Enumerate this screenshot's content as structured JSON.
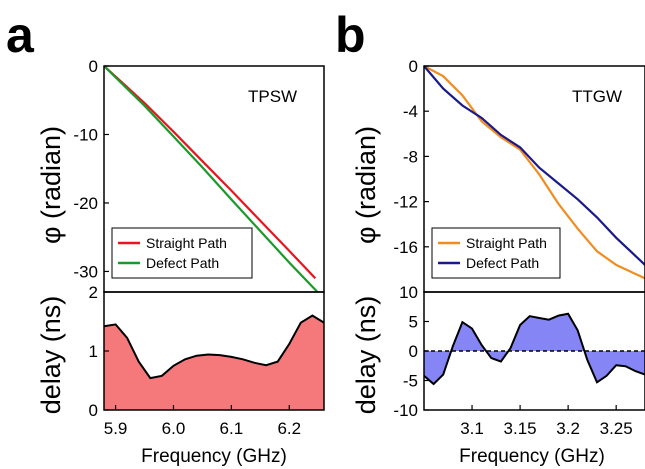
{
  "panels": [
    {
      "letter": "a"
    },
    {
      "letter": "b"
    }
  ],
  "chart_data": [
    {
      "type": "line",
      "panel": "a",
      "inset_label": "TPSW",
      "ylabel": "φ (radian)",
      "ylim": [
        -33,
        0
      ],
      "xlim": [
        5.88,
        6.26
      ],
      "yticks": [
        0,
        -10,
        -20,
        -30
      ],
      "ytick_labels": [
        "0",
        "-10",
        "-20",
        "-30"
      ],
      "legend_position": "bottom-left",
      "series": [
        {
          "name": "Straight Path",
          "color": "#e8141e",
          "x": [
            5.88,
            5.95,
            6.0,
            6.05,
            6.1,
            6.15,
            6.2,
            6.245
          ],
          "y": [
            0,
            -5.4,
            -9.6,
            -13.9,
            -18.2,
            -22.6,
            -27.0,
            -31.0
          ]
        },
        {
          "name": "Defect Path",
          "color": "#1a9a2a",
          "x": [
            5.88,
            5.95,
            6.0,
            6.05,
            6.1,
            6.15,
            6.2,
            6.26
          ],
          "y": [
            0,
            -5.8,
            -10.3,
            -14.8,
            -19.5,
            -24.1,
            -28.7,
            -34.0
          ]
        }
      ]
    },
    {
      "type": "area",
      "panel": "a",
      "ylabel": "delay (ns)",
      "xlabel": "Frequency (GHz)",
      "xlim": [
        5.88,
        6.26
      ],
      "ylim": [
        0,
        2
      ],
      "xticks": [
        5.9,
        6.0,
        6.1,
        6.2
      ],
      "xtick_labels": [
        "5.9",
        "6.0",
        "6.1",
        "6.2"
      ],
      "yticks": [
        0,
        1,
        2
      ],
      "ytick_labels": [
        "0",
        "1",
        "2"
      ],
      "fill_color": "#f5797a",
      "x": [
        5.88,
        5.9,
        5.92,
        5.94,
        5.96,
        5.98,
        6.0,
        6.02,
        6.04,
        6.06,
        6.08,
        6.1,
        6.12,
        6.14,
        6.16,
        6.18,
        6.2,
        6.22,
        6.24,
        6.26
      ],
      "values": [
        1.42,
        1.45,
        1.22,
        0.82,
        0.54,
        0.58,
        0.75,
        0.86,
        0.92,
        0.94,
        0.93,
        0.9,
        0.86,
        0.8,
        0.76,
        0.82,
        1.12,
        1.48,
        1.6,
        1.48
      ]
    },
    {
      "type": "line",
      "panel": "b",
      "inset_label": "TTGW",
      "ylabel": "φ (radian)",
      "ylim": [
        -20,
        0
      ],
      "xlim": [
        3.05,
        3.28
      ],
      "yticks": [
        0,
        -4,
        -8,
        -12,
        -16
      ],
      "ytick_labels": [
        "0",
        "-4",
        "-8",
        "-12",
        "-16"
      ],
      "legend_position": "bottom-left",
      "series": [
        {
          "name": "Straight Path",
          "color": "#f28c1e",
          "x": [
            3.05,
            3.07,
            3.09,
            3.11,
            3.13,
            3.15,
            3.17,
            3.19,
            3.21,
            3.23,
            3.25,
            3.28
          ],
          "y": [
            0,
            -0.9,
            -2.6,
            -4.9,
            -6.3,
            -7.4,
            -9.6,
            -12.2,
            -14.4,
            -16.4,
            -17.6,
            -18.8
          ]
        },
        {
          "name": "Defect Path",
          "color": "#1a1a8c",
          "x": [
            3.05,
            3.07,
            3.09,
            3.11,
            3.13,
            3.15,
            3.17,
            3.19,
            3.21,
            3.23,
            3.25,
            3.28
          ],
          "y": [
            0,
            -2.0,
            -3.5,
            -4.6,
            -6.1,
            -7.2,
            -9.0,
            -10.4,
            -11.8,
            -13.4,
            -15.2,
            -17.6
          ]
        }
      ]
    },
    {
      "type": "area",
      "panel": "b",
      "ylabel": "delay (ns)",
      "xlabel": "Frequency (GHz)",
      "xlim": [
        3.05,
        3.28
      ],
      "ylim": [
        -10,
        10
      ],
      "xticks": [
        3.1,
        3.15,
        3.2,
        3.25
      ],
      "xtick_labels": [
        "3.1",
        "3.15",
        "3.2",
        "3.25"
      ],
      "yticks": [
        -10,
        -5,
        0,
        5,
        10
      ],
      "ytick_labels": [
        "-10",
        "-5",
        "0",
        "5",
        "10"
      ],
      "baseline": 0,
      "fill_color": "#8585f5",
      "x": [
        3.05,
        3.06,
        3.07,
        3.08,
        3.09,
        3.1,
        3.11,
        3.12,
        3.13,
        3.14,
        3.15,
        3.16,
        3.17,
        3.18,
        3.19,
        3.2,
        3.21,
        3.22,
        3.23,
        3.24,
        3.25,
        3.26,
        3.27,
        3.28
      ],
      "values": [
        -4.2,
        -5.6,
        -4.0,
        0.8,
        4.9,
        3.8,
        1.0,
        -1.2,
        -1.8,
        0.5,
        4.4,
        5.9,
        5.6,
        5.3,
        6.0,
        6.3,
        3.5,
        -1.5,
        -5.3,
        -4.2,
        -2.4,
        -2.6,
        -3.4,
        -4.0
      ]
    }
  ]
}
